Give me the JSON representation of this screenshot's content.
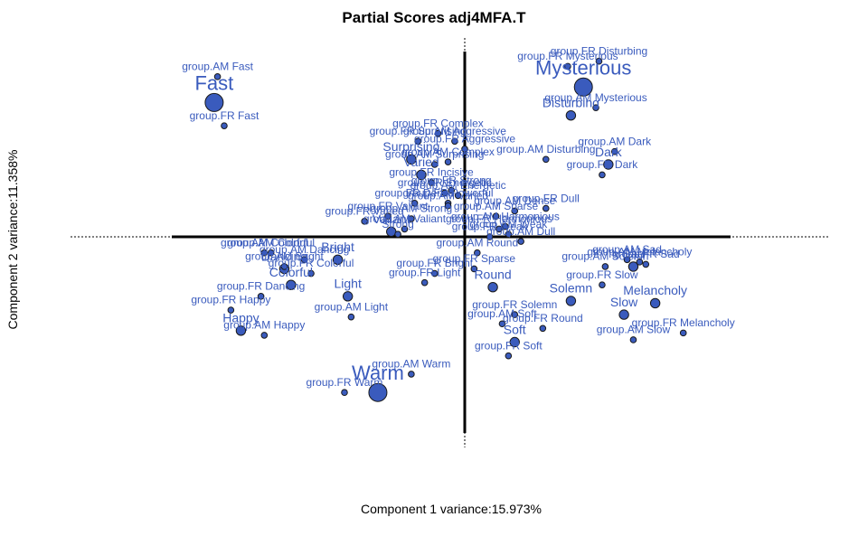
{
  "colors": {
    "label": "#3a5bbd",
    "point_fill": "#3a5bbd",
    "point_stroke": "#1a1a1a",
    "axis": "#000000"
  },
  "chart_data": {
    "type": "scatter",
    "title": "Partial Scores adj4MFA.T",
    "xlabel": "Component 1 variance:15.973%",
    "ylabel": "Component 2 variance:11.358%",
    "xlim": [
      -1.18,
      1.17
    ],
    "ylim": [
      -0.92,
      0.77
    ],
    "origin_lines": true,
    "points": [
      {
        "label": "Fast",
        "x": -0.75,
        "y": 0.52,
        "size": "large"
      },
      {
        "label": "group.AM Fast",
        "x": -0.74,
        "y": 0.62,
        "size": "small"
      },
      {
        "label": "group.FR Fast",
        "x": -0.72,
        "y": 0.43,
        "size": "small"
      },
      {
        "label": "Happy",
        "x": -0.67,
        "y": -0.41,
        "size": "medium"
      },
      {
        "label": "group.FR Happy",
        "x": -0.7,
        "y": -0.32,
        "size": "small"
      },
      {
        "label": "group.AM Happy",
        "x": -0.6,
        "y": -0.43,
        "size": "small"
      },
      {
        "label": "group.FR Dancing",
        "x": -0.61,
        "y": -0.26,
        "size": "small"
      },
      {
        "label": "Dancing",
        "x": -0.54,
        "y": -0.14,
        "size": "medium"
      },
      {
        "label": "group.AM Dancing",
        "x": -0.48,
        "y": -0.1,
        "size": "small"
      },
      {
        "label": "group.AM Colorful",
        "x": -0.6,
        "y": -0.07,
        "size": "small"
      },
      {
        "label": "group.AM Bright",
        "x": -0.54,
        "y": -0.13,
        "size": "small"
      },
      {
        "label": "group.FR Colorful",
        "x": -0.46,
        "y": -0.16,
        "size": "small"
      },
      {
        "label": "Colorful",
        "x": -0.52,
        "y": -0.21,
        "size": "medium"
      },
      {
        "label": "Bright",
        "x": -0.38,
        "y": -0.1,
        "size": "medium"
      },
      {
        "label": "Warm",
        "x": -0.26,
        "y": -0.68,
        "size": "large"
      },
      {
        "label": "group.FR Warm",
        "x": -0.36,
        "y": -0.68,
        "size": "small"
      },
      {
        "label": "group.AM Warm",
        "x": -0.16,
        "y": -0.6,
        "size": "small"
      },
      {
        "label": "Light",
        "x": -0.35,
        "y": -0.26,
        "size": "medium"
      },
      {
        "label": "group.AM Light",
        "x": -0.34,
        "y": -0.35,
        "size": "small"
      },
      {
        "label": "group.FR Light",
        "x": -0.12,
        "y": -0.2,
        "size": "small"
      },
      {
        "label": "group.FR Bright",
        "x": -0.09,
        "y": -0.16,
        "size": "small"
      },
      {
        "label": "Mysterious",
        "x": 0.38,
        "y": 0.58,
        "size": "large"
      },
      {
        "label": "group.FR Mysterious",
        "x": 0.33,
        "y": 0.66,
        "size": "small"
      },
      {
        "label": "group.FR Disturbing",
        "x": 0.43,
        "y": 0.68,
        "size": "small"
      },
      {
        "label": "Disturbing",
        "x": 0.34,
        "y": 0.47,
        "size": "medium"
      },
      {
        "label": "group.AM Mysterious",
        "x": 0.42,
        "y": 0.5,
        "size": "small"
      },
      {
        "label": "group.AM Disturbing",
        "x": 0.26,
        "y": 0.3,
        "size": "small"
      },
      {
        "label": "Dark",
        "x": 0.46,
        "y": 0.28,
        "size": "medium"
      },
      {
        "label": "group.AM Dark",
        "x": 0.48,
        "y": 0.33,
        "size": "small"
      },
      {
        "label": "group.FR Dark",
        "x": 0.44,
        "y": 0.24,
        "size": "small"
      },
      {
        "label": "Melancholy",
        "x": 0.61,
        "y": -0.29,
        "size": "medium"
      },
      {
        "label": "group.FR Melancholy",
        "x": 0.7,
        "y": -0.42,
        "size": "small"
      },
      {
        "label": "Slow",
        "x": 0.51,
        "y": -0.34,
        "size": "medium"
      },
      {
        "label": "group.AM Slow",
        "x": 0.54,
        "y": -0.45,
        "size": "small"
      },
      {
        "label": "group.FR Slow",
        "x": 0.44,
        "y": -0.21,
        "size": "small"
      },
      {
        "label": "Sad",
        "x": 0.54,
        "y": -0.13,
        "size": "medium"
      },
      {
        "label": "group.AM Sad",
        "x": 0.52,
        "y": -0.1,
        "size": "small"
      },
      {
        "label": "group.FR Sad",
        "x": 0.58,
        "y": -0.12,
        "size": "small"
      },
      {
        "label": "group.AM Melancholy",
        "x": 0.56,
        "y": -0.11,
        "size": "small"
      },
      {
        "label": "group.AM Solemn",
        "x": 0.45,
        "y": -0.13,
        "size": "small"
      },
      {
        "label": "Solemn",
        "x": 0.34,
        "y": -0.28,
        "size": "medium"
      },
      {
        "label": "group.FR Solemn",
        "x": 0.16,
        "y": -0.34,
        "size": "small"
      },
      {
        "label": "Soft",
        "x": 0.16,
        "y": -0.46,
        "size": "medium"
      },
      {
        "label": "group.FR Soft",
        "x": 0.14,
        "y": -0.52,
        "size": "small"
      },
      {
        "label": "group.AM Soft",
        "x": 0.12,
        "y": -0.38,
        "size": "small"
      },
      {
        "label": "group.FR Round",
        "x": 0.25,
        "y": -0.4,
        "size": "small"
      },
      {
        "label": "Round",
        "x": 0.09,
        "y": -0.22,
        "size": "medium"
      },
      {
        "label": "group.AM Round",
        "x": 0.04,
        "y": -0.07,
        "size": "small"
      },
      {
        "label": "group.FR Sparse",
        "x": 0.03,
        "y": -0.14,
        "size": "small"
      },
      {
        "label": "group.FR Dull",
        "x": 0.26,
        "y": 0.11,
        "size": "small"
      },
      {
        "label": "group.AM Dull",
        "x": 0.18,
        "y": -0.02,
        "size": "small"
      },
      {
        "label": "group.AM Dense",
        "x": 0.16,
        "y": 0.1,
        "size": "small"
      },
      {
        "label": "group.AM Sparse",
        "x": 0.1,
        "y": 0.08,
        "size": "small"
      },
      {
        "label": "group.AM Weak",
        "x": 0.14,
        "y": 0.01,
        "size": "small"
      },
      {
        "label": "group.FR Weak",
        "x": 0.08,
        "y": 0.0,
        "size": "small"
      },
      {
        "label": "group.AM Harmonious",
        "x": 0.13,
        "y": 0.04,
        "size": "small"
      },
      {
        "label": "group.FR Harmonious",
        "x": 0.11,
        "y": 0.03,
        "size": "small"
      },
      {
        "label": "group.FR Powerful",
        "x": -0.05,
        "y": 0.13,
        "size": "small"
      },
      {
        "label": "group.FR Energetic",
        "x": -0.06,
        "y": 0.17,
        "size": "small"
      },
      {
        "label": "group.FR Strong",
        "x": -0.04,
        "y": 0.18,
        "size": "small"
      },
      {
        "label": "group.AM Energetic",
        "x": -0.02,
        "y": 0.16,
        "size": "small"
      },
      {
        "label": "group.FR Dense",
        "x": -0.15,
        "y": 0.13,
        "size": "small"
      },
      {
        "label": "group.AM Surprising",
        "x": -0.09,
        "y": 0.28,
        "size": "small"
      },
      {
        "label": "group.FR Surprising",
        "x": -0.14,
        "y": 0.37,
        "size": "small"
      },
      {
        "label": "group.FR Complex",
        "x": -0.08,
        "y": 0.4,
        "size": "small"
      },
      {
        "label": "group.AM Aggressive",
        "x": -0.03,
        "y": 0.37,
        "size": "small"
      },
      {
        "label": "group.AM Complex",
        "x": -0.05,
        "y": 0.29,
        "size": "small"
      },
      {
        "label": "group.FR Aggressive",
        "x": 0.0,
        "y": 0.34,
        "size": "small"
      },
      {
        "label": "Surprising",
        "x": -0.16,
        "y": 0.3,
        "size": "medium"
      },
      {
        "label": "Varied",
        "x": -0.13,
        "y": 0.24,
        "size": "medium"
      },
      {
        "label": "group.FR Incisive",
        "x": -0.1,
        "y": 0.21,
        "size": "small"
      },
      {
        "label": "group.AM Varied",
        "x": -0.05,
        "y": 0.12,
        "size": "small"
      },
      {
        "label": "group.AM Valiant",
        "x": -0.18,
        "y": 0.03,
        "size": "small"
      },
      {
        "label": "group.FR Valiant",
        "x": -0.23,
        "y": 0.08,
        "size": "small"
      },
      {
        "label": "Valiant",
        "x": -0.22,
        "y": 0.02,
        "size": "medium"
      },
      {
        "label": "group.AM Strong",
        "x": -0.16,
        "y": 0.07,
        "size": "small"
      },
      {
        "label": "Strong",
        "x": -0.2,
        "y": 0.01,
        "size": "small"
      },
      {
        "label": "group.FR Varied",
        "x": -0.3,
        "y": 0.06,
        "size": "small"
      },
      {
        "label": "group.AM Colorful",
        "x": -0.58,
        "y": -0.07,
        "size": "small"
      }
    ]
  },
  "labels_shown": {
    "title": "Partial Scores adj4MFA.T",
    "xlabel": "Component 1 variance:15.973%",
    "ylabel": "Component 2 variance:11.358%"
  }
}
